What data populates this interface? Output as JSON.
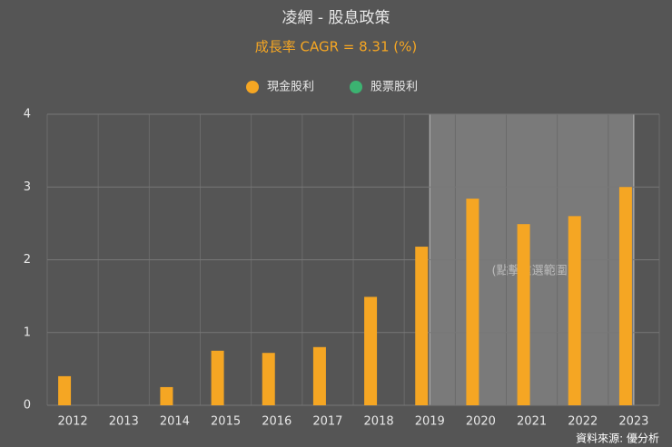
{
  "chart_data": {
    "type": "bar",
    "title": "凌網 - 股息政策",
    "subtitle": "成長率 CAGR = 8.31 (%)",
    "categories": [
      "2012",
      "2013",
      "2014",
      "2015",
      "2016",
      "2017",
      "2018",
      "2019",
      "2020",
      "2021",
      "2022",
      "2023"
    ],
    "series": [
      {
        "name": "現金股利",
        "color": "#f5a623",
        "values": [
          0.4,
          0,
          0.25,
          0.75,
          0.72,
          0.8,
          1.49,
          2.18,
          2.84,
          2.49,
          2.6,
          3.0
        ]
      },
      {
        "name": "股票股利",
        "color": "#3cb371",
        "values": [
          0,
          0,
          0,
          0,
          0,
          0,
          0,
          0,
          0,
          0,
          0,
          0
        ]
      }
    ],
    "ylim": [
      0,
      4
    ],
    "yticks": [
      0,
      1,
      2,
      3,
      4
    ],
    "grid": true,
    "legend": "top",
    "highlight": {
      "from": "2019",
      "to": "2023",
      "label": "(點擊重選範圍)"
    },
    "source": "資料來源: 優分析"
  }
}
